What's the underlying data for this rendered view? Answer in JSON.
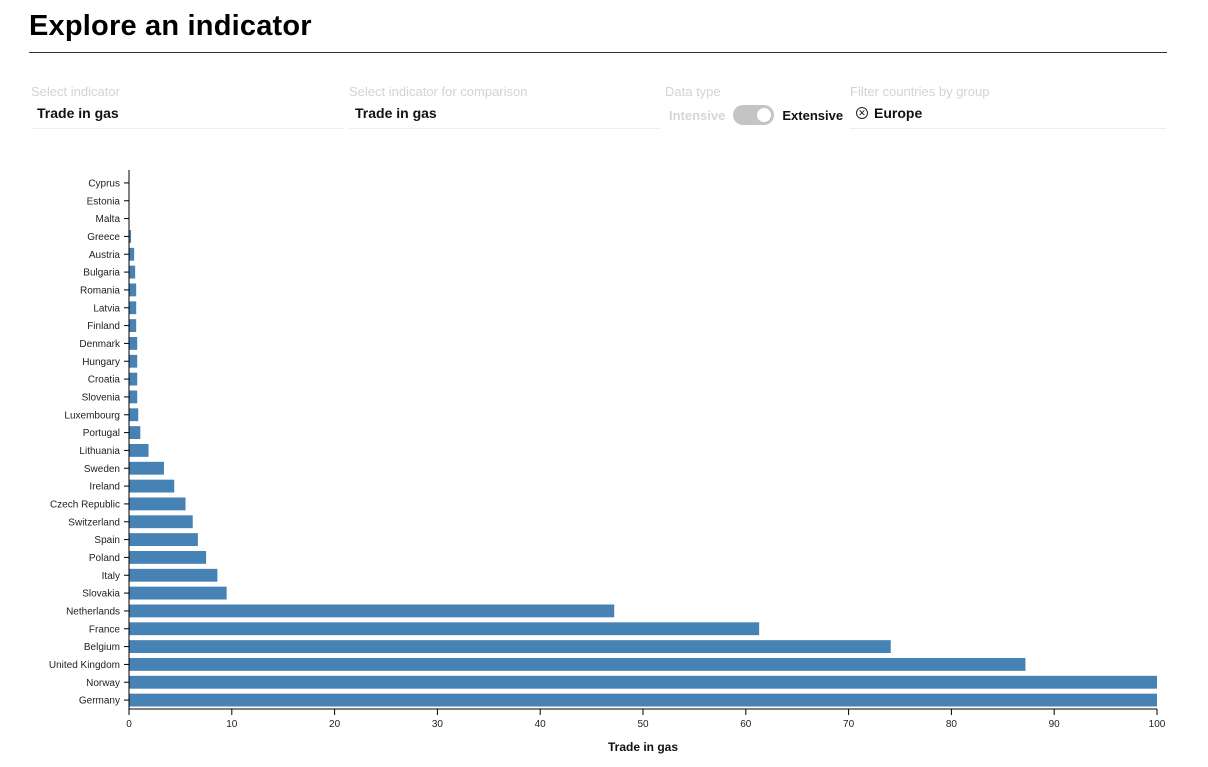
{
  "page": {
    "title": "Explore an indicator"
  },
  "controls": {
    "indicator": {
      "label": "Select indicator",
      "value": "Trade in gas"
    },
    "comparison": {
      "label": "Select indicator for comparison",
      "value": "Trade in gas"
    },
    "data_type": {
      "label": "Data type",
      "option_off": "Intensive",
      "option_on": "Extensive",
      "selected": "Extensive"
    },
    "filter": {
      "label": "Filter countries by group",
      "chip": "Europe"
    }
  },
  "colors": {
    "bar": "#4682b4",
    "toggle": "#c4c4c4"
  },
  "chart_data": {
    "type": "bar",
    "orientation": "horizontal",
    "xlabel": "Trade in gas",
    "ylabel": "",
    "xlim": [
      0,
      100
    ],
    "xticks": [
      0,
      10,
      20,
      30,
      40,
      50,
      60,
      70,
      80,
      90,
      100
    ],
    "grid": false,
    "categories": [
      "Cyprus",
      "Estonia",
      "Malta",
      "Greece",
      "Austria",
      "Bulgaria",
      "Romania",
      "Latvia",
      "Finland",
      "Denmark",
      "Hungary",
      "Croatia",
      "Slovenia",
      "Luxembourg",
      "Portugal",
      "Lithuania",
      "Sweden",
      "Ireland",
      "Czech Republic",
      "Switzerland",
      "Spain",
      "Poland",
      "Italy",
      "Slovakia",
      "Netherlands",
      "France",
      "Belgium",
      "United Kingdom",
      "Norway",
      "Germany"
    ],
    "values": [
      0,
      0,
      0,
      0.2,
      0.5,
      0.6,
      0.7,
      0.7,
      0.7,
      0.8,
      0.8,
      0.8,
      0.8,
      0.9,
      1.1,
      1.9,
      3.4,
      4.4,
      5.5,
      6.2,
      6.7,
      7.5,
      8.6,
      9.5,
      47.2,
      61.3,
      74.1,
      87.2,
      100,
      100
    ]
  }
}
